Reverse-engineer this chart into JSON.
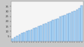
{
  "values": [
    2.5,
    4.0,
    5.5,
    7.0,
    8.0,
    9.0,
    10.0,
    11.0,
    12.0,
    13.0,
    14.0,
    15.0,
    16.0,
    17.0,
    18.0,
    19.0,
    20.0,
    21.0,
    22.0,
    23.0,
    24.5,
    25.5,
    26.5,
    27.5,
    28.5,
    29.5,
    30.5,
    31.5,
    33.0,
    36.0
  ],
  "bar_color": "#aad4f5",
  "bar_edge_color": "#6699cc",
  "fig_facecolor": "#c8c8c8",
  "plot_bg_color": "#f5f5f5",
  "ylim": [
    0,
    40
  ],
  "yticks": [
    5,
    10,
    15,
    20,
    25,
    30,
    35
  ],
  "tick_fontsize": 2.8,
  "linewidth": 0.35,
  "bar_width": 0.82
}
